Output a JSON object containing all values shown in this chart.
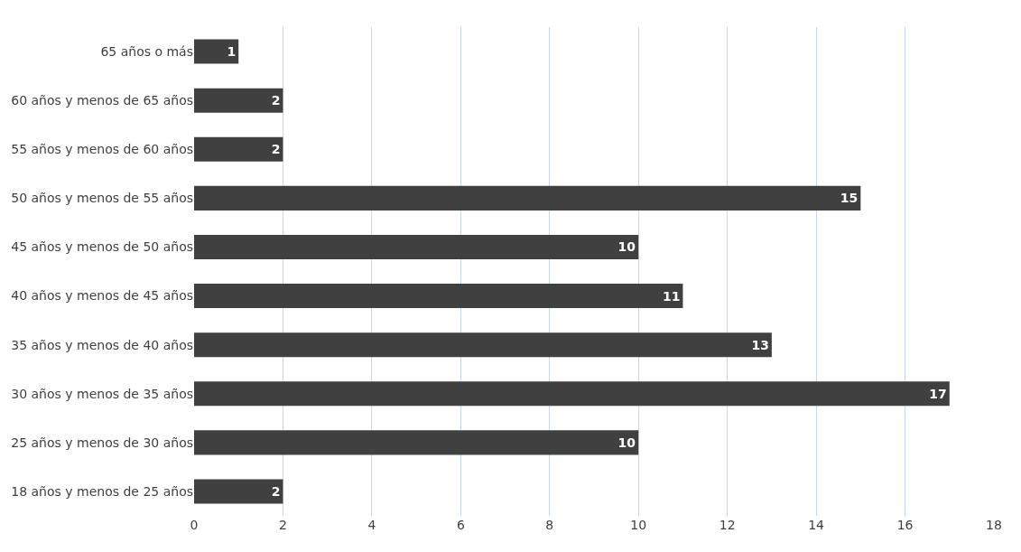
{
  "chart_data": {
    "type": "bar",
    "orientation": "horizontal",
    "categories": [
      "65 años o más",
      "60 años y menos de 65 años",
      "55 años y menos de 60 años",
      "50 años y menos de 55 años",
      "45 años y menos de 50 años",
      "40 años y menos de 45 años",
      "35 años y menos de 40 años",
      "30 años y menos de 35 años",
      "25 años y menos de 30 años",
      "18 años y menos de 25 años"
    ],
    "values": [
      1,
      2,
      2,
      15,
      10,
      11,
      13,
      17,
      10,
      2
    ],
    "color": "#404040",
    "xlim": [
      0,
      18
    ],
    "xticks": [
      0,
      2,
      4,
      6,
      8,
      10,
      12,
      14,
      16,
      18
    ],
    "grid": "x",
    "data_labels": true
  }
}
